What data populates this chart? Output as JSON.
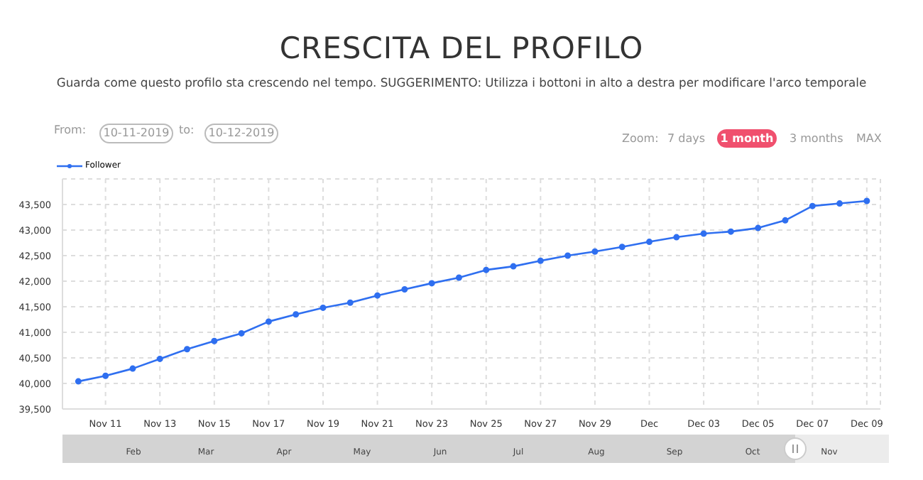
{
  "chart_data": {
    "type": "line",
    "title": "CRESCITA DEL PROFILO",
    "subtitle": "Guarda come questo profilo sta crescendo nel tempo. SUGGERIMENTO: Utilizza i bottoni in alto a destra per modificare l'arco temporale",
    "annotations": [
      "From:",
      "10-11-2019",
      "to:",
      "10-12-2019",
      "Zoom:",
      "7 days",
      "1 month",
      "3 months",
      "MAX",
      "Feb",
      "Mar",
      "Apr",
      "May",
      "Jun",
      "Jul",
      "Aug",
      "Sep",
      "Oct",
      "Nov"
    ],
    "x": [
      "2019-11-10",
      "2019-11-11",
      "2019-11-12",
      "2019-11-13",
      "2019-11-14",
      "2019-11-15",
      "2019-11-16",
      "2019-11-17",
      "2019-11-18",
      "2019-11-19",
      "2019-11-20",
      "2019-11-21",
      "2019-11-22",
      "2019-11-23",
      "2019-11-24",
      "2019-11-25",
      "2019-11-26",
      "2019-11-27",
      "2019-11-28",
      "2019-11-29",
      "2019-11-30",
      "2019-12-01",
      "2019-12-02",
      "2019-12-03",
      "2019-12-04",
      "2019-12-05",
      "2019-12-06",
      "2019-12-07",
      "2019-12-08",
      "2019-12-09"
    ],
    "series": [
      {
        "name": "Follower",
        "color": "#2f6ff0",
        "values": [
          40040,
          40150,
          40290,
          40480,
          40670,
          40830,
          40980,
          41210,
          41350,
          41480,
          41580,
          41720,
          41840,
          41960,
          42070,
          42220,
          42290,
          42400,
          42500,
          42580,
          42670,
          42770,
          42860,
          42930,
          42970,
          43040,
          43190,
          43470,
          43520,
          43570
        ]
      }
    ],
    "xlim": [
      "2019-11-09T10:00",
      "2019-12-09T12:00"
    ],
    "xticks": [
      {
        "value": "2019-11-11",
        "label": "Nov 11"
      },
      {
        "value": "2019-11-13",
        "label": "Nov 13"
      },
      {
        "value": "2019-11-15",
        "label": "Nov 15"
      },
      {
        "value": "2019-11-17",
        "label": "Nov 17"
      },
      {
        "value": "2019-11-19",
        "label": "Nov 19"
      },
      {
        "value": "2019-11-21",
        "label": "Nov 21"
      },
      {
        "value": "2019-11-23",
        "label": "Nov 23"
      },
      {
        "value": "2019-11-25",
        "label": "Nov 25"
      },
      {
        "value": "2019-11-27",
        "label": "Nov 27"
      },
      {
        "value": "2019-11-29",
        "label": "Nov 29"
      },
      {
        "value": "2019-12-01",
        "label": "Dec"
      },
      {
        "value": "2019-12-03",
        "label": "Dec 03"
      },
      {
        "value": "2019-12-05",
        "label": "Dec 05"
      },
      {
        "value": "2019-12-07",
        "label": "Dec 07"
      },
      {
        "value": "2019-12-09",
        "label": "Dec 09"
      }
    ],
    "ylim": [
      39500,
      44000
    ],
    "yticks": [
      {
        "value": 39500,
        "label": "39,500"
      },
      {
        "value": 40000,
        "label": "40,000"
      },
      {
        "value": 40500,
        "label": "40,500"
      },
      {
        "value": 41000,
        "label": "41,000"
      },
      {
        "value": 41500,
        "label": "41,500"
      },
      {
        "value": 42000,
        "label": "42,000"
      },
      {
        "value": 42500,
        "label": "42,500"
      },
      {
        "value": 43000,
        "label": "43,000"
      },
      {
        "value": 43500,
        "label": "43,500"
      },
      {
        "value": 44000,
        "label": null
      }
    ],
    "grid": true,
    "legend": "top left",
    "marker": "circle",
    "line_style": "solid"
  }
}
